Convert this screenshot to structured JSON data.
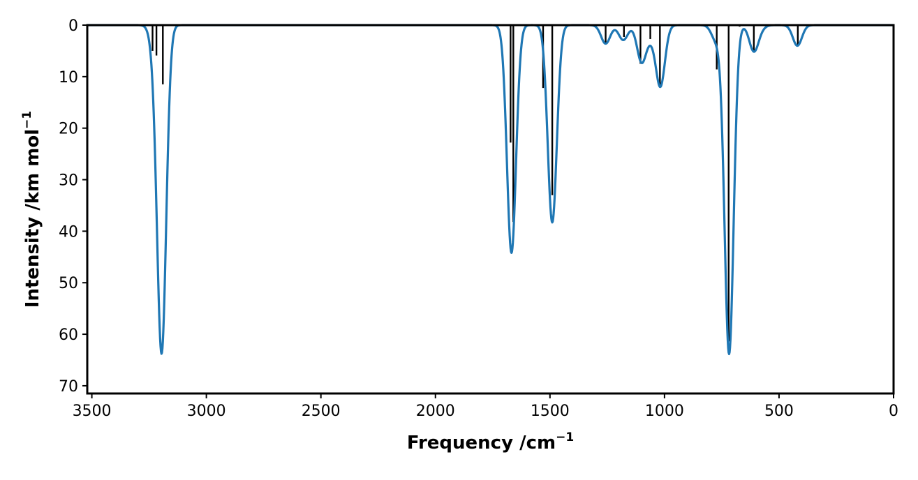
{
  "chart_data": {
    "type": "line",
    "title": "",
    "xlabel": "Frequency /cm",
    "xlabel_sup": "−1",
    "ylabel": "Intensity /km mol",
    "ylabel_sup": "−1",
    "xlim": [
      3520,
      0
    ],
    "ylim": [
      71.5,
      0
    ],
    "x_inverted": true,
    "y_inverted": true,
    "grid": false,
    "legend": "none",
    "xticks": [
      3500,
      3000,
      2500,
      2000,
      1500,
      1000,
      500,
      0
    ],
    "yticks": [
      0,
      10,
      20,
      30,
      40,
      50,
      60,
      70
    ],
    "xtick_labels": [
      "3500",
      "3000",
      "2500",
      "2000",
      "1500",
      "1000",
      "500",
      "0"
    ],
    "ytick_labels": [
      "0",
      "10",
      "20",
      "30",
      "40",
      "50",
      "60",
      "70"
    ],
    "curve_color": "#1f77b4",
    "stick_color": "#000000",
    "series": [
      {
        "kind": "broadened-spectrum",
        "x_range": [
          3520,
          0
        ],
        "peaks": [
          {
            "x": 3225,
            "y": 4.0,
            "width": 28
          },
          {
            "x": 3195,
            "y": 62.5,
            "width": 28
          },
          {
            "x": 1668,
            "y": 44.2,
            "width": 28
          },
          {
            "x": 1490,
            "y": 38.3,
            "width": 28
          },
          {
            "x": 1257,
            "y": 3.6,
            "width": 28
          },
          {
            "x": 1180,
            "y": 2.9,
            "width": 28
          },
          {
            "x": 1100,
            "y": 7.1,
            "width": 28
          },
          {
            "x": 1060,
            "y": 1.9,
            "width": 28
          },
          {
            "x": 1018,
            "y": 11.8,
            "width": 28
          },
          {
            "x": 775,
            "y": 2.9,
            "width": 28
          },
          {
            "x": 718,
            "y": 63.8,
            "width": 28
          },
          {
            "x": 610,
            "y": 5.0,
            "width": 28
          },
          {
            "x": 580,
            "y": 0.5,
            "width": 28
          },
          {
            "x": 420,
            "y": 4.0,
            "width": 28
          }
        ]
      },
      {
        "kind": "sticks",
        "x": [
          3235,
          3218,
          3190,
          1672,
          1660,
          1530,
          1490,
          1257,
          1177,
          1105,
          1062,
          1020,
          772,
          720,
          672,
          610,
          418
        ],
        "y": [
          5.0,
          5.9,
          11.5,
          22.8,
          38.2,
          12.2,
          33.0,
          3.6,
          2.3,
          7.5,
          2.7,
          11.6,
          8.6,
          61.4,
          0.3,
          5.0,
          3.9
        ]
      }
    ]
  }
}
